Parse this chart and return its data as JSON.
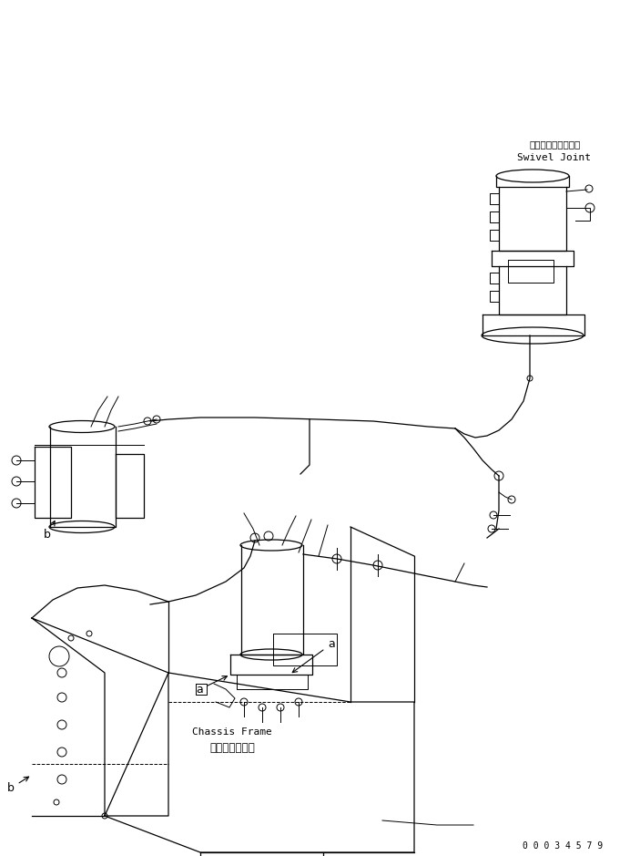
{
  "bg_color": "#ffffff",
  "line_color": "#000000",
  "text_color": "#000000",
  "figsize": [
    7.03,
    9.39
  ],
  "dpi": 100,
  "part_number": "0 0 0 3 4 5 7 9",
  "label_a_top": "a",
  "label_b_top": "b",
  "label_a_bot": "a",
  "label_b_bot": "b",
  "chassis_frame_jp": "シャシフレーム",
  "chassis_frame_en": "Chassis Frame",
  "swivel_jp": "スイベルジョイント",
  "swivel_en": "Swivel Joint"
}
